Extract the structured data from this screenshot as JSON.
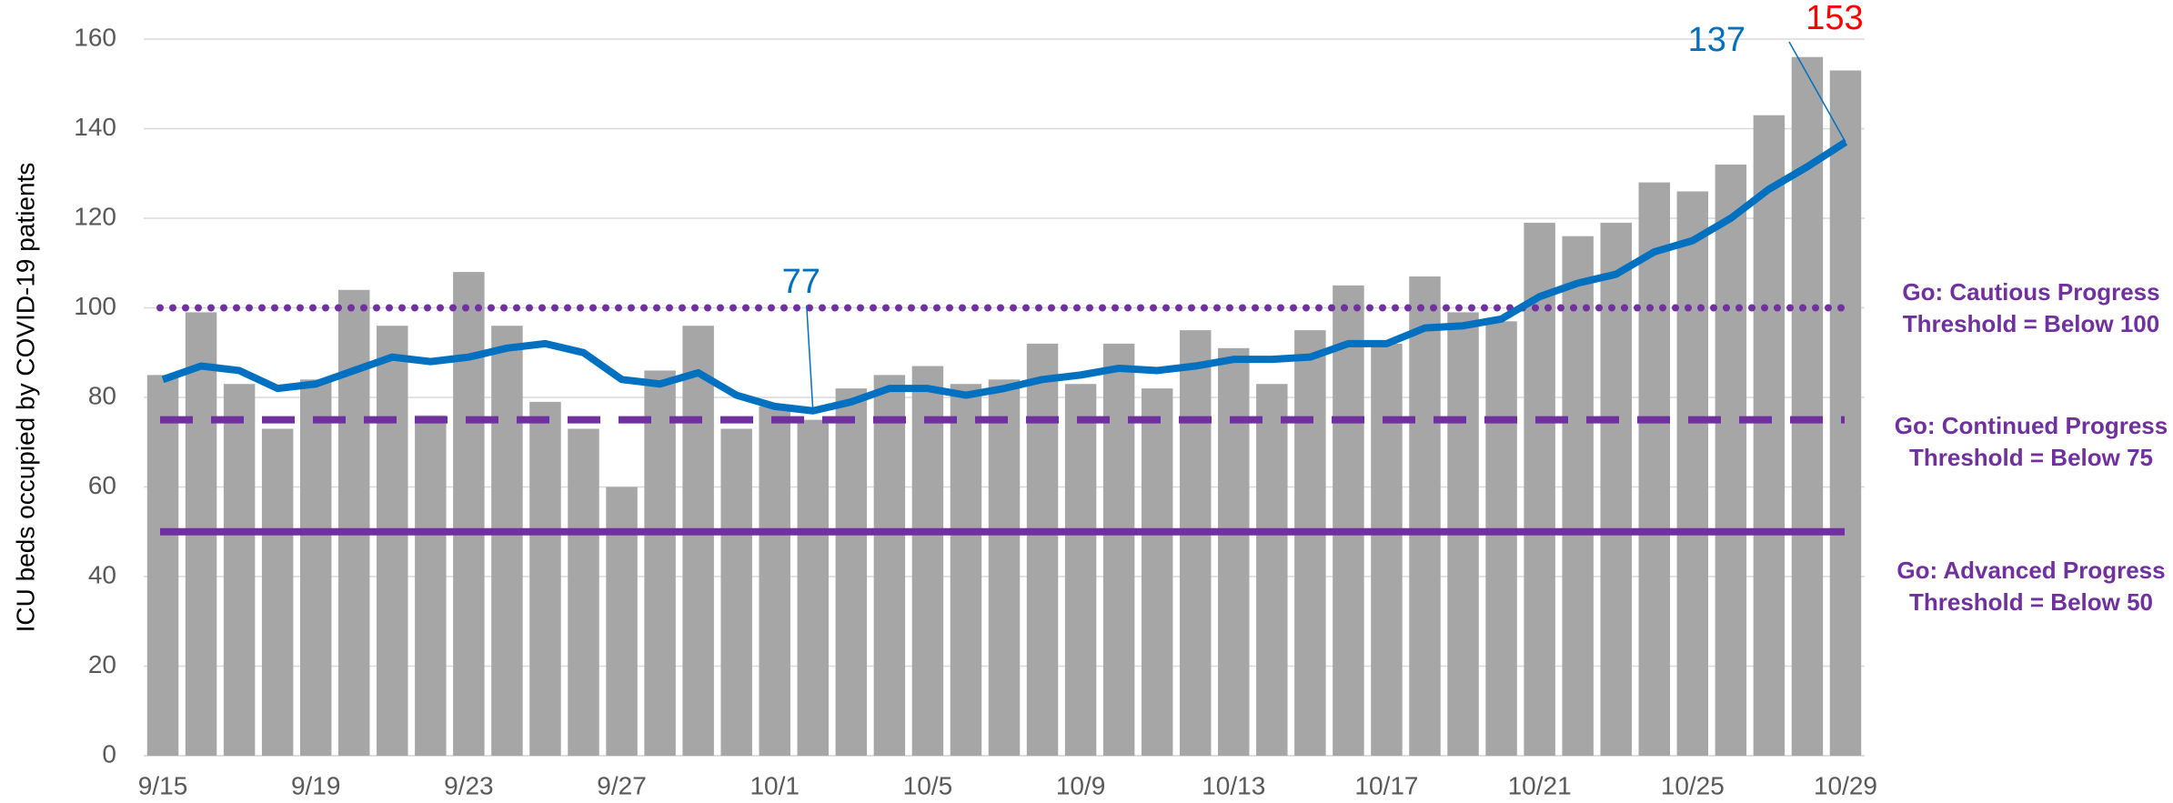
{
  "chart_data": {
    "type": "bar",
    "y_label": "ICU beds occupied by COVID-19 patients",
    "categories": [
      "9/15",
      null,
      null,
      null,
      "9/19",
      null,
      null,
      null,
      "9/23",
      null,
      null,
      null,
      "9/27",
      null,
      null,
      null,
      "10/1",
      null,
      null,
      null,
      "10/5",
      null,
      null,
      null,
      "10/9",
      null,
      null,
      null,
      "10/13",
      null,
      null,
      null,
      "10/17",
      null,
      null,
      null,
      "10/21",
      null,
      null,
      null,
      "10/25",
      null,
      null,
      null,
      "10/29"
    ],
    "series": [
      {
        "type": "bar",
        "color": "#a6a6a6",
        "values": [
          85,
          99,
          83,
          73,
          84,
          104,
          96,
          76,
          108,
          96,
          79,
          73,
          60,
          86,
          96,
          73,
          78,
          75,
          82,
          85,
          87,
          83,
          84,
          92,
          83,
          92,
          82,
          95,
          91,
          83,
          95,
          105,
          92,
          107,
          99,
          97,
          119,
          116,
          119,
          128,
          126,
          132,
          143,
          156,
          153
        ],
        "value_labels": [
          null,
          null,
          null,
          null,
          null,
          null,
          null,
          null,
          null,
          null,
          null,
          null,
          null,
          null,
          null,
          null,
          null,
          null,
          null,
          null,
          null,
          null,
          null,
          null,
          null,
          null,
          null,
          null,
          null,
          null,
          null,
          null,
          null,
          null,
          null,
          null,
          null,
          null,
          null,
          null,
          null,
          null,
          null,
          null,
          "153"
        ],
        "label_color": "#ff0000"
      },
      {
        "type": "line",
        "color": "#0070c0",
        "values": [
          84,
          87,
          86,
          82,
          83,
          86,
          89,
          88,
          89,
          91,
          92,
          90,
          84,
          83,
          85.5,
          80.5,
          78,
          77,
          79,
          82,
          82,
          80.5,
          82,
          84,
          85,
          86.5,
          86,
          87,
          88.5,
          88.5,
          89,
          92,
          92,
          95.5,
          96,
          97.5,
          102.5,
          105.5,
          107.5,
          112.5,
          115,
          120,
          126.5,
          131.5,
          137
        ],
        "value_labels": [
          null,
          null,
          null,
          null,
          null,
          null,
          null,
          null,
          null,
          null,
          null,
          null,
          null,
          null,
          null,
          null,
          null,
          "77",
          null,
          null,
          null,
          null,
          null,
          null,
          null,
          null,
          null,
          null,
          null,
          null,
          null,
          null,
          null,
          null,
          null,
          null,
          null,
          null,
          null,
          null,
          null,
          null,
          null,
          null,
          "137"
        ],
        "label_color": "#0070c0"
      }
    ],
    "reference_lines": [
      {
        "value": 100,
        "label": "Go: Cautious Progress Threshold = Below 100",
        "style": "dotted",
        "color": "#7030a0"
      },
      {
        "value": 75,
        "label": "Go: Continued Progress Threshold = Below 75",
        "style": "dashed",
        "color": "#7030a0"
      },
      {
        "value": 50,
        "label": "Go: Advanced Progress Threshold = Below 50",
        "style": "solid",
        "color": "#7030a0"
      }
    ],
    "ylim": [
      0,
      160
    ],
    "yticks": [
      0,
      20,
      40,
      60,
      80,
      100,
      120,
      140,
      160
    ],
    "grid": true
  }
}
